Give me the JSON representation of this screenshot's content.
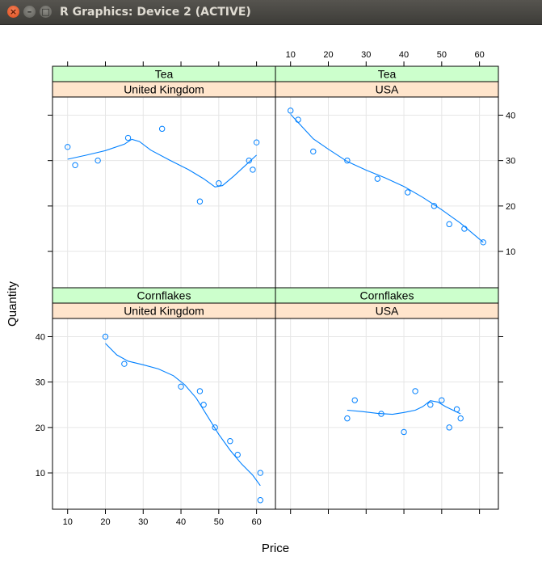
{
  "window": {
    "title": "R Graphics: Device 2 (ACTIVE)",
    "close_glyph": "×",
    "minimize_glyph": "–",
    "maximize_glyph": "□"
  },
  "colors": {
    "point": "#0080ff",
    "line": "#0080ff",
    "strip_top": "#ccffcc",
    "strip_bottom": "#ffe5cc",
    "grid": "#e6e6e6",
    "axis": "#000000"
  },
  "chart_data": {
    "type": "scatter",
    "xlabel": "Price",
    "ylabel": "Quantity",
    "xlim": [
      6,
      65
    ],
    "ylim": [
      2,
      44
    ],
    "x_ticks": [
      10,
      20,
      30,
      40,
      50,
      60
    ],
    "y_ticks": [
      10,
      20,
      30,
      40
    ],
    "grid": true,
    "smoother": "loess",
    "panels": [
      {
        "id": "tea-uk",
        "strip_top": "Tea",
        "strip_bottom": "United Kingdom",
        "points": [
          [
            10,
            33
          ],
          [
            12,
            29
          ],
          [
            18,
            30
          ],
          [
            26,
            35
          ],
          [
            35,
            37
          ],
          [
            45,
            21
          ],
          [
            50,
            25
          ],
          [
            58,
            30
          ],
          [
            59,
            28
          ],
          [
            60,
            34
          ]
        ],
        "curve": [
          [
            10,
            30.3
          ],
          [
            15,
            31.2
          ],
          [
            20,
            32.2
          ],
          [
            25,
            33.6
          ],
          [
            27,
            34.7
          ],
          [
            29,
            34.2
          ],
          [
            32,
            32.3
          ],
          [
            37,
            30.1
          ],
          [
            42,
            28
          ],
          [
            46,
            26
          ],
          [
            49,
            24.2
          ],
          [
            51,
            24.5
          ],
          [
            54,
            26.6
          ],
          [
            57,
            28.9
          ],
          [
            60,
            31.2
          ]
        ]
      },
      {
        "id": "tea-usa",
        "strip_top": "Tea",
        "strip_bottom": "USA",
        "points": [
          [
            10,
            41
          ],
          [
            12,
            39
          ],
          [
            16,
            32
          ],
          [
            25,
            30
          ],
          [
            33,
            26
          ],
          [
            41,
            23
          ],
          [
            48,
            20
          ],
          [
            52,
            16
          ],
          [
            56,
            15
          ],
          [
            61,
            12
          ]
        ],
        "curve": [
          [
            10,
            40.2
          ],
          [
            13,
            37.5
          ],
          [
            16,
            34.8
          ],
          [
            20,
            32.5
          ],
          [
            25,
            29.8
          ],
          [
            30,
            27.9
          ],
          [
            35,
            26.2
          ],
          [
            40,
            24.3
          ],
          [
            45,
            21.9
          ],
          [
            50,
            19.2
          ],
          [
            55,
            16.2
          ],
          [
            61,
            12
          ]
        ]
      },
      {
        "id": "cornflakes-uk",
        "strip_top": "Cornflakes",
        "strip_bottom": "United Kingdom",
        "points": [
          [
            20,
            40
          ],
          [
            25,
            34
          ],
          [
            40,
            29
          ],
          [
            45,
            28
          ],
          [
            46,
            25
          ],
          [
            49,
            20
          ],
          [
            53,
            17
          ],
          [
            55,
            14
          ],
          [
            61,
            10
          ],
          [
            61,
            4
          ]
        ],
        "curve": [
          [
            20,
            38.5
          ],
          [
            23,
            36
          ],
          [
            26,
            34.6
          ],
          [
            30,
            33.8
          ],
          [
            34,
            32.9
          ],
          [
            38,
            31.4
          ],
          [
            41,
            29.4
          ],
          [
            44,
            26.5
          ],
          [
            47,
            22.5
          ],
          [
            50,
            18.5
          ],
          [
            53,
            15
          ],
          [
            56,
            12
          ],
          [
            59,
            9.5
          ],
          [
            61,
            7.2
          ]
        ]
      },
      {
        "id": "cornflakes-usa",
        "strip_top": "Cornflakes",
        "strip_bottom": "USA",
        "points": [
          [
            25,
            22
          ],
          [
            27,
            26
          ],
          [
            34,
            23
          ],
          [
            40,
            19
          ],
          [
            43,
            28
          ],
          [
            47,
            25
          ],
          [
            50,
            26
          ],
          [
            52,
            20
          ],
          [
            54,
            24
          ],
          [
            55,
            22
          ]
        ],
        "curve": [
          [
            25,
            23.8
          ],
          [
            29,
            23.5
          ],
          [
            33,
            23.1
          ],
          [
            37,
            22.9
          ],
          [
            40,
            23.3
          ],
          [
            43,
            23.8
          ],
          [
            45,
            24.6
          ],
          [
            47,
            25.9
          ],
          [
            49,
            25.6
          ],
          [
            51,
            24.6
          ],
          [
            53,
            23.8
          ],
          [
            55,
            23
          ]
        ]
      }
    ]
  }
}
